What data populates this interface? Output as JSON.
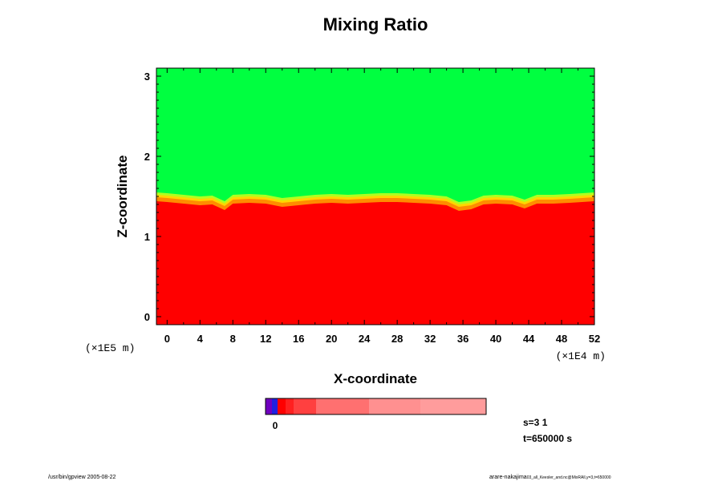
{
  "chart_data": {
    "type": "heatmap",
    "title": "Mixing Ratio",
    "xlabel": "X-coordinate",
    "ylabel": "Z-coordinate",
    "x_scale_label": "(×1E4 m)",
    "y_scale_label": "(×1E5 m)",
    "xlim": [
      -1.3,
      52
    ],
    "ylim": [
      -0.1,
      3.1
    ],
    "x_ticks": [
      "0",
      "4",
      "8",
      "12",
      "16",
      "20",
      "24",
      "28",
      "32",
      "36",
      "40",
      "44",
      "48",
      "52"
    ],
    "y_ticks": [
      "0",
      "1",
      "2",
      "3"
    ],
    "upper_region_color": "#00ff40",
    "lower_region_color": "#ff0000",
    "boundary_colors": [
      "#ff8c00",
      "#ffd700",
      "#b0ff20"
    ],
    "interface_z": [
      [
        -1.3,
        1.47
      ],
      [
        0,
        1.46
      ],
      [
        2,
        1.44
      ],
      [
        4,
        1.42
      ],
      [
        5.5,
        1.43
      ],
      [
        7,
        1.36
      ],
      [
        8,
        1.44
      ],
      [
        10,
        1.45
      ],
      [
        12,
        1.44
      ],
      [
        14,
        1.4
      ],
      [
        16,
        1.42
      ],
      [
        18,
        1.44
      ],
      [
        20,
        1.45
      ],
      [
        22,
        1.44
      ],
      [
        24,
        1.45
      ],
      [
        26,
        1.46
      ],
      [
        28,
        1.46
      ],
      [
        30,
        1.45
      ],
      [
        32,
        1.44
      ],
      [
        34,
        1.42
      ],
      [
        35.5,
        1.35
      ],
      [
        37,
        1.37
      ],
      [
        38.5,
        1.43
      ],
      [
        40,
        1.44
      ],
      [
        42,
        1.43
      ],
      [
        43.5,
        1.38
      ],
      [
        45,
        1.44
      ],
      [
        47,
        1.44
      ],
      [
        49,
        1.45
      ],
      [
        52,
        1.47
      ]
    ],
    "colorbar": {
      "segments": [
        "#7000c0",
        "#2020e0",
        "#ff0000",
        "#ff2020",
        "#ff4040",
        "#ff7070",
        "#ff9090",
        "#ff9c9c"
      ],
      "tick_label": "0"
    },
    "annotations": {
      "s_label": "s=3 1",
      "t_label": "t=650000 s"
    }
  },
  "footer": {
    "left": "/usr/bin/gpview 2005-08-22",
    "right_main": "arare-nakajima",
    "right_sub": "03_all_Keesler_and.nc@MixRAll,y=3,t=650000"
  }
}
